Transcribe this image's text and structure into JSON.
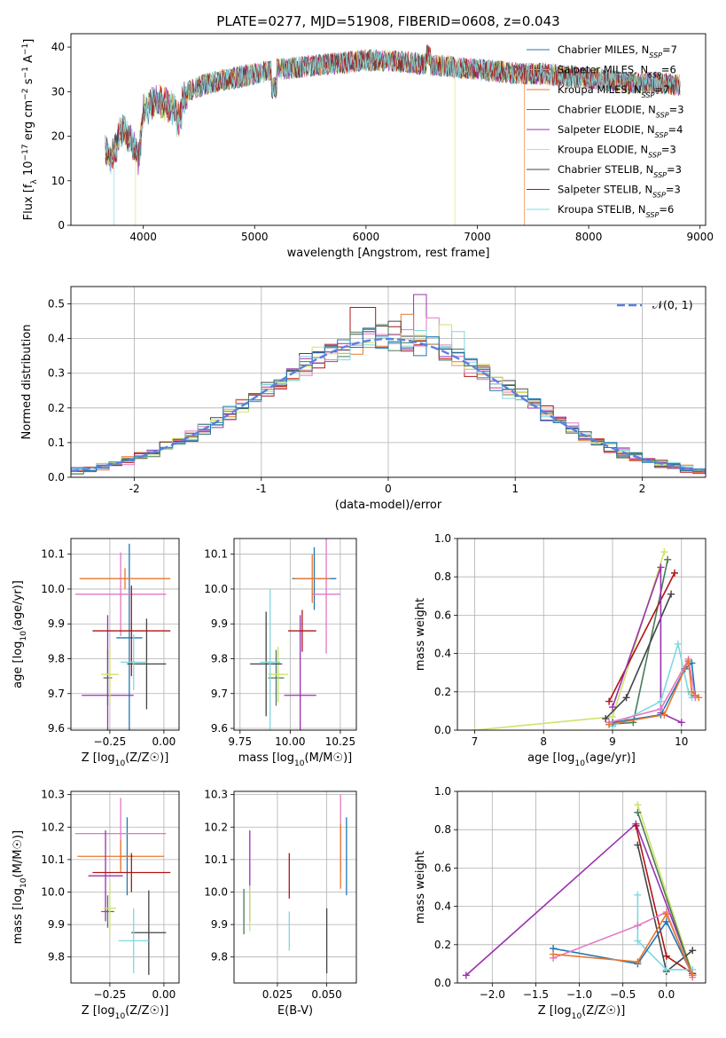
{
  "figure_title": "PLATE=0277, MJD=51908, FIBERID=0608, z=0.043",
  "colors": {
    "chabrier_miles": "#1f77b4",
    "salpeter_miles": "#e377c2",
    "kroupa_miles": "#e8772e",
    "chabrier_elodie": "#4a7a5a",
    "salpeter_elodie": "#9b30b0",
    "kroupa_elodie": "#cfe36a",
    "chabrier_stelib": "#444444",
    "salpeter_stelib": "#b01515",
    "kroupa_stelib": "#7fd8e0"
  },
  "chart_data": [
    {
      "id": "spectrum",
      "type": "line",
      "xlabel": "wavelength [Angstrom, rest frame]",
      "ylabel": "Flux [f_λ 10^-17 erg cm^-2 s^-1 A^-1]",
      "xlim": [
        3350,
        9050
      ],
      "ylim": [
        0,
        43
      ],
      "xticks": [
        4000,
        5000,
        6000,
        7000,
        8000,
        9000
      ],
      "yticks": [
        0,
        10,
        20,
        30,
        40
      ],
      "legend_position": "top-right",
      "legend": [
        {
          "model": "Chabrier MILES",
          "nssp": "7",
          "color_key": "chabrier_miles"
        },
        {
          "model": "Salpeter MILES",
          "nssp": "6",
          "color_key": "salpeter_miles"
        },
        {
          "model": "Kroupa MILES",
          "nssp": "7",
          "color_key": "kroupa_miles"
        },
        {
          "model": "Chabrier ELODIE",
          "nssp": "3",
          "color_key": "chabrier_elodie"
        },
        {
          "model": "Salpeter ELODIE",
          "nssp": "4",
          "color_key": "salpeter_elodie"
        },
        {
          "model": "Kroupa ELODIE",
          "nssp": "3",
          "color_key": "kroupa_elodie"
        },
        {
          "model": "Chabrier STELIB",
          "nssp": "3",
          "color_key": "chabrier_stelib"
        },
        {
          "model": "Salpeter STELIB",
          "nssp": "3",
          "color_key": "salpeter_stelib"
        },
        {
          "model": "Kroupa STELIB",
          "nssp": "6",
          "color_key": "kroupa_stelib"
        }
      ],
      "envelope": {
        "x": [
          3650,
          3700,
          3760,
          3800,
          3900,
          3960,
          4000,
          4100,
          4200,
          4300,
          4400,
          4500,
          4600,
          4800,
          5000,
          5200,
          5400,
          5600,
          5800,
          6000,
          6200,
          6400,
          6600,
          6800,
          7000,
          7200,
          7400,
          7600,
          7800,
          8000,
          8200,
          8400,
          8600,
          8800
        ],
        "y": [
          17,
          15,
          18,
          22,
          19,
          15,
          26,
          28,
          27,
          26,
          30,
          31,
          32,
          33,
          34,
          35,
          35.5,
          36,
          36.5,
          37,
          37,
          36.5,
          36,
          35.5,
          35,
          34.5,
          34,
          34,
          33.5,
          33,
          32.5,
          32,
          32,
          31.5
        ]
      },
      "cutoffs": [
        {
          "color_key": "kroupa_stelib",
          "x_end": 3740
        },
        {
          "color_key": "kroupa_elodie",
          "x_end": 3930
        },
        {
          "color_key": "kroupa_elodie",
          "x_end": 6800
        },
        {
          "color_key": "kroupa_miles",
          "x_end": 7420
        }
      ]
    },
    {
      "id": "residual_histogram",
      "type": "histogram",
      "xlabel": "(data-model)/error",
      "ylabel": "Normed distribution",
      "xlim": [
        -2.5,
        2.5
      ],
      "ylim": [
        0,
        0.55
      ],
      "xticks": [
        -2,
        -1,
        0,
        1,
        2
      ],
      "yticks": [
        0.0,
        0.1,
        0.2,
        0.3,
        0.4,
        0.5
      ],
      "grid": true,
      "legend_position": "top-right",
      "reference_curve": {
        "label": "𝒩(0, 1)",
        "mean": 0,
        "sigma": 1,
        "color": "#5b7fe0",
        "style": "dashed"
      },
      "bin_width": 0.1,
      "bin_start": -2.5,
      "series": [
        {
          "color_key": "salpeter_elodie",
          "spike": 0.527,
          "spike_x": 0.25
        },
        {
          "color_key": "salpeter_stelib",
          "spike": 0.49,
          "spike_x": -0.2
        },
        {
          "color_key": "salpeter_miles",
          "spike": 0.46,
          "spike_x": 0.35
        },
        {
          "color_key": "kroupa_miles",
          "spike": 0.47,
          "spike_x": 0.15
        },
        {
          "color_key": "chabrier_stelib",
          "spike": 0.45,
          "spike_x": 0.05
        },
        {
          "color_key": "kroupa_elodie",
          "spike": 0.44,
          "spike_x": 0.45
        },
        {
          "color_key": "chabrier_elodie",
          "spike": 0.44,
          "spike_x": -0.05
        },
        {
          "color_key": "kroupa_stelib",
          "spike": 0.42,
          "spike_x": 0.55
        },
        {
          "color_key": "chabrier_miles",
          "spike": 0.43,
          "spike_x": -0.15
        }
      ]
    },
    {
      "id": "age_vs_Z",
      "type": "errorbar",
      "xlabel": "Z [log10(Z/Z☉)]",
      "ylabel": "age [log10(age/yr)]",
      "xlim": [
        -0.43,
        0.07
      ],
      "ylim": [
        9.595,
        10.145
      ],
      "xticks": [
        -0.25,
        0.0
      ],
      "xticklabels": [
        "−0.25",
        "0.00"
      ],
      "yticks": [
        9.6,
        9.7,
        9.8,
        9.9,
        10.0,
        10.1
      ],
      "grid": true,
      "points": [
        {
          "color_key": "chabrier_miles",
          "x": -0.16,
          "xerr": 0.06,
          "y": 9.86,
          "yerr": 0.27
        },
        {
          "color_key": "salpeter_miles",
          "x": -0.2,
          "xerr": 0.21,
          "y": 9.985,
          "yerr": 0.12
        },
        {
          "color_key": "kroupa_miles",
          "x": -0.18,
          "xerr": 0.21,
          "y": 10.03,
          "yerr": 0.03
        },
        {
          "color_key": "chabrier_elodie",
          "x": -0.26,
          "xerr": 0.02,
          "y": 9.745,
          "yerr": 0.08
        },
        {
          "color_key": "salpeter_elodie",
          "x": -0.26,
          "xerr": 0.12,
          "y": 9.695,
          "yerr": 0.23
        },
        {
          "color_key": "kroupa_elodie",
          "x": -0.25,
          "xerr": 0.04,
          "y": 9.755,
          "yerr": 0.08
        },
        {
          "color_key": "chabrier_stelib",
          "x": -0.08,
          "xerr": 0.09,
          "y": 9.785,
          "yerr": 0.13
        },
        {
          "color_key": "salpeter_stelib",
          "x": -0.15,
          "xerr": 0.18,
          "y": 9.88,
          "yerr": 0.13
        },
        {
          "color_key": "kroupa_stelib",
          "x": -0.14,
          "xerr": 0.06,
          "y": 9.79,
          "yerr": 0.08
        }
      ]
    },
    {
      "id": "age_vs_mass",
      "type": "errorbar",
      "xlabel": "mass [log10(M/M☉)]",
      "ylabel": "",
      "xlim": [
        9.72,
        10.33
      ],
      "ylim": [
        9.595,
        10.145
      ],
      "xticks": [
        9.75,
        10.0,
        10.25
      ],
      "xticklabels": [
        "9.75",
        "10.00",
        "10.25"
      ],
      "yticks": [
        9.6,
        9.7,
        9.8,
        9.9,
        10.0,
        10.1
      ],
      "grid": true,
      "points": [
        {
          "color_key": "chabrier_miles",
          "x": 10.12,
          "xerr": 0.11,
          "y": 10.03,
          "yerr": 0.09
        },
        {
          "color_key": "salpeter_miles",
          "x": 10.18,
          "xerr": 0.07,
          "y": 9.985,
          "yerr": 0.17
        },
        {
          "color_key": "kroupa_miles",
          "x": 10.11,
          "xerr": 0.09,
          "y": 10.03,
          "yerr": 0.07
        },
        {
          "color_key": "chabrier_elodie",
          "x": 9.93,
          "xerr": 0.04,
          "y": 9.745,
          "yerr": 0.08
        },
        {
          "color_key": "salpeter_elodie",
          "x": 10.05,
          "xerr": 0.08,
          "y": 9.695,
          "yerr": 0.23
        },
        {
          "color_key": "kroupa_elodie",
          "x": 9.94,
          "xerr": 0.05,
          "y": 9.755,
          "yerr": 0.08
        },
        {
          "color_key": "chabrier_stelib",
          "x": 9.88,
          "xerr": 0.08,
          "y": 9.785,
          "yerr": 0.15
        },
        {
          "color_key": "salpeter_stelib",
          "x": 10.06,
          "xerr": 0.07,
          "y": 9.88,
          "yerr": 0.06
        },
        {
          "color_key": "kroupa_stelib",
          "x": 9.9,
          "xerr": 0.05,
          "y": 9.79,
          "yerr": 0.21
        }
      ]
    },
    {
      "id": "mass_weight_vs_age",
      "type": "line",
      "xlabel": "age [log10(age/yr)]",
      "ylabel": "mass weight",
      "xlim": [
        6.75,
        10.35
      ],
      "ylim": [
        0,
        1.0
      ],
      "xticks": [
        7,
        8,
        9,
        10
      ],
      "yticks": [
        0.0,
        0.2,
        0.4,
        0.6,
        0.8,
        1.0
      ],
      "grid": true,
      "marker": "+",
      "series": [
        {
          "color_key": "kroupa_elodie",
          "x": [
            7.0,
            9.0,
            9.75
          ],
          "y": [
            0.0,
            0.07,
            0.93
          ]
        },
        {
          "color_key": "chabrier_elodie",
          "x": [
            8.95,
            9.3,
            9.8
          ],
          "y": [
            0.03,
            0.04,
            0.89
          ]
        },
        {
          "color_key": "salpeter_stelib",
          "x": [
            8.95,
            9.9
          ],
          "y": [
            0.15,
            0.82
          ]
        },
        {
          "color_key": "chabrier_stelib",
          "x": [
            8.9,
            9.2,
            9.85
          ],
          "y": [
            0.06,
            0.17,
            0.71
          ]
        },
        {
          "color_key": "salpeter_elodie",
          "x": [
            9.0,
            9.7,
            9.7,
            10.0
          ],
          "y": [
            0.12,
            0.85,
            0.09,
            0.04
          ]
        },
        {
          "color_key": "kroupa_stelib",
          "x": [
            9.0,
            9.7,
            9.95,
            10.1,
            10.15
          ],
          "y": [
            0.02,
            0.15,
            0.45,
            0.2,
            0.17
          ]
        },
        {
          "color_key": "chabrier_miles",
          "x": [
            9.0,
            9.7,
            10.05,
            10.15,
            10.2
          ],
          "y": [
            0.04,
            0.08,
            0.32,
            0.35,
            0.18
          ]
        },
        {
          "color_key": "salpeter_miles",
          "x": [
            8.95,
            9.7,
            10.1,
            10.2
          ],
          "y": [
            0.04,
            0.11,
            0.37,
            0.17
          ]
        },
        {
          "color_key": "kroupa_miles",
          "x": [
            8.95,
            9.75,
            10.1,
            10.15,
            10.25
          ],
          "y": [
            0.03,
            0.08,
            0.36,
            0.2,
            0.17
          ]
        }
      ]
    },
    {
      "id": "mass_vs_Z",
      "type": "errorbar",
      "xlabel": "Z [log10(Z/Z☉)]",
      "ylabel": "mass [log10(M/M☉)]",
      "xlim": [
        -0.43,
        0.07
      ],
      "ylim": [
        9.72,
        10.31
      ],
      "xticks": [
        -0.25,
        0.0
      ],
      "xticklabels": [
        "−0.25",
        "0.00"
      ],
      "yticks": [
        9.8,
        9.9,
        10.0,
        10.1,
        10.2,
        10.3
      ],
      "grid": true,
      "points": [
        {
          "color_key": "chabrier_miles",
          "x": -0.17,
          "xerr": 0.03,
          "y": 10.11,
          "yerr": 0.12
        },
        {
          "color_key": "salpeter_miles",
          "x": -0.2,
          "xerr": 0.21,
          "y": 10.18,
          "yerr": 0.11
        },
        {
          "color_key": "kroupa_miles",
          "x": -0.2,
          "xerr": 0.2,
          "y": 10.11,
          "yerr": 0.05
        },
        {
          "color_key": "chabrier_elodie",
          "x": -0.26,
          "xerr": 0.03,
          "y": 9.94,
          "yerr": 0.05
        },
        {
          "color_key": "salpeter_elodie",
          "x": -0.27,
          "xerr": 0.08,
          "y": 10.05,
          "yerr": 0.14
        },
        {
          "color_key": "kroupa_elodie",
          "x": -0.25,
          "xerr": 0.03,
          "y": 9.95,
          "yerr": 0.08
        },
        {
          "color_key": "chabrier_stelib",
          "x": -0.07,
          "xerr": 0.08,
          "y": 9.875,
          "yerr": 0.13
        },
        {
          "color_key": "salpeter_stelib",
          "x": -0.15,
          "xerr": 0.18,
          "y": 10.06,
          "yerr": 0.06
        },
        {
          "color_key": "kroupa_stelib",
          "x": -0.14,
          "xerr": 0.07,
          "y": 9.85,
          "yerr": 0.1
        }
      ]
    },
    {
      "id": "mass_vs_ebv",
      "type": "errorbar",
      "xlabel": "E(B-V)",
      "ylabel": "",
      "xlim": [
        0.003,
        0.065
      ],
      "ylim": [
        9.72,
        10.31
      ],
      "xticks": [
        0.025,
        0.05
      ],
      "xticklabels": [
        "0.025",
        "0.050"
      ],
      "yticks": [
        9.8,
        9.9,
        10.0,
        10.1,
        10.2,
        10.3
      ],
      "grid": true,
      "points": [
        {
          "color_key": "chabrier_miles",
          "x": 0.06,
          "y": 10.11,
          "yerr": 0.12
        },
        {
          "color_key": "salpeter_miles",
          "x": 0.057,
          "y": 10.18,
          "yerr": 0.12
        },
        {
          "color_key": "kroupa_miles",
          "x": 0.057,
          "y": 10.11,
          "yerr": 0.1
        },
        {
          "color_key": "chabrier_elodie",
          "x": 0.008,
          "y": 9.94,
          "yerr": 0.07
        },
        {
          "color_key": "salpeter_elodie",
          "x": 0.011,
          "y": 10.05,
          "yerr": 0.14
        },
        {
          "color_key": "kroupa_elodie",
          "x": 0.011,
          "y": 9.95,
          "yerr": 0.07
        },
        {
          "color_key": "chabrier_stelib",
          "x": 0.05,
          "y": 9.85,
          "yerr": 0.1
        },
        {
          "color_key": "salpeter_stelib",
          "x": 0.031,
          "y": 10.05,
          "yerr": 0.07
        },
        {
          "color_key": "kroupa_stelib",
          "x": 0.031,
          "y": 9.88,
          "yerr": 0.06
        }
      ]
    },
    {
      "id": "mass_weight_vs_Z",
      "type": "line",
      "xlabel": "Z [log10(Z/Z☉)]",
      "ylabel": "mass weight",
      "xlim": [
        -2.4,
        0.45
      ],
      "ylim": [
        0,
        1.0
      ],
      "xticks": [
        -2.0,
        -1.5,
        -1.0,
        -0.5,
        0.0
      ],
      "xticklabels": [
        "−2.0",
        "−1.5",
        "−1.0",
        "−0.5",
        "0.0"
      ],
      "yticks": [
        0.0,
        0.2,
        0.4,
        0.6,
        0.8,
        1.0
      ],
      "grid": true,
      "marker": "+",
      "series": [
        {
          "color_key": "salpeter_elodie",
          "x": [
            -2.3,
            -0.35,
            0.3
          ],
          "y": [
            0.04,
            0.83,
            0.05
          ]
        },
        {
          "color_key": "kroupa_elodie",
          "x": [
            -0.33,
            0.3
          ],
          "y": [
            0.93,
            0.05
          ]
        },
        {
          "color_key": "chabrier_elodie",
          "x": [
            -0.33,
            0.3
          ],
          "y": [
            0.89,
            0.04
          ]
        },
        {
          "color_key": "salpeter_stelib",
          "x": [
            -0.35,
            0.0,
            0.3
          ],
          "y": [
            0.82,
            0.14,
            0.05
          ]
        },
        {
          "color_key": "chabrier_stelib",
          "x": [
            -0.33,
            0.0,
            0.3
          ],
          "y": [
            0.72,
            0.06,
            0.17
          ]
        },
        {
          "color_key": "kroupa_stelib",
          "x": [
            -0.33,
            -0.33,
            0.0,
            0.3
          ],
          "y": [
            0.46,
            0.22,
            0.07,
            0.07
          ]
        },
        {
          "color_key": "chabrier_miles",
          "x": [
            -1.3,
            -0.33,
            0.0,
            0.3
          ],
          "y": [
            0.18,
            0.1,
            0.32,
            0.04
          ]
        },
        {
          "color_key": "salpeter_miles",
          "x": [
            -1.3,
            -0.33,
            0.0,
            0.3
          ],
          "y": [
            0.13,
            0.3,
            0.37,
            0.03
          ]
        },
        {
          "color_key": "kroupa_miles",
          "x": [
            -1.3,
            -0.33,
            0.0,
            0.3
          ],
          "y": [
            0.15,
            0.11,
            0.36,
            0.04
          ]
        }
      ]
    }
  ]
}
